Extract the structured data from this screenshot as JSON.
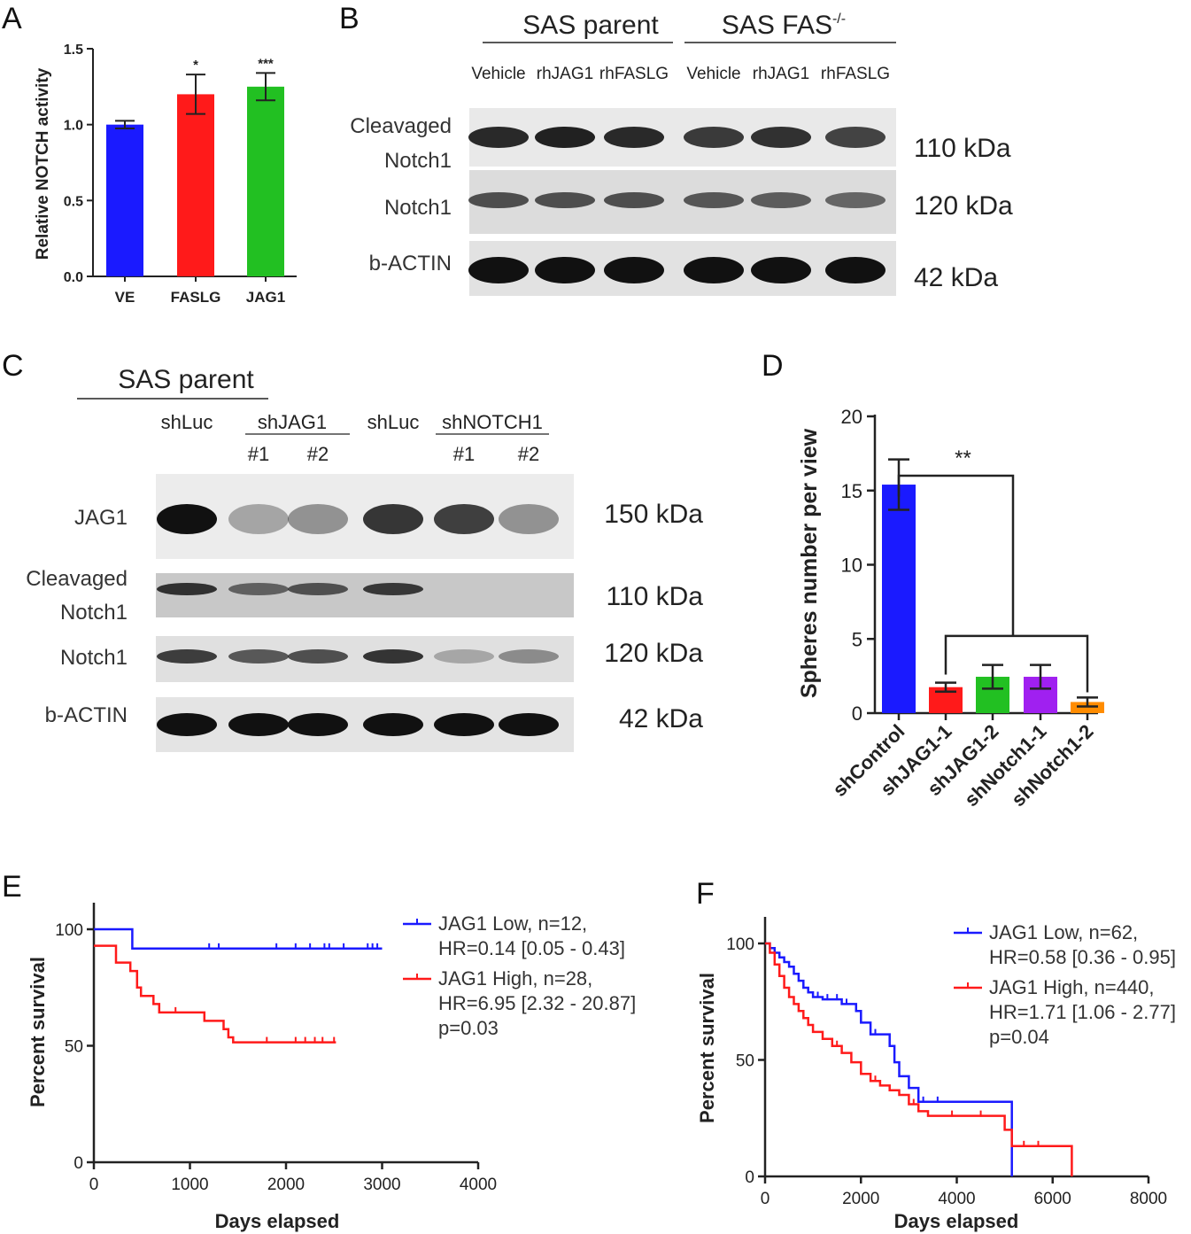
{
  "panels": {
    "A": {
      "label": "A",
      "chart_data": {
        "type": "bar",
        "title": "",
        "xlabel": "",
        "ylabel": "Relative NOTCH activity",
        "ylim": [
          0,
          1.5
        ],
        "yticks": [
          "0.0",
          "0.5",
          "1.0",
          "1.5"
        ],
        "categories": [
          "VE",
          "FASLG",
          "JAG1"
        ],
        "values": [
          1.0,
          1.2,
          1.25
        ],
        "errors": [
          0.025,
          0.13,
          0.09
        ],
        "colors": [
          "#1a1aff",
          "#ff1a1a",
          "#22c022"
        ],
        "significance": [
          "",
          "*",
          "***"
        ]
      }
    },
    "B": {
      "label": "B",
      "group_headers": [
        "SAS parent",
        "SAS FAS",
        "-/-"
      ],
      "lanes": [
        "Vehicle",
        "rhJAG1",
        "rhFASLG",
        "Vehicle",
        "rhJAG1",
        "rhFASLG"
      ],
      "rows": [
        {
          "label_lines": [
            "Cleavaged",
            "Notch1"
          ],
          "size": "110 kDa",
          "intensity": [
            0.85,
            0.9,
            0.85,
            0.75,
            0.8,
            0.7
          ]
        },
        {
          "label_lines": [
            "Notch1"
          ],
          "size": "120 kDa",
          "intensity": [
            0.6,
            0.6,
            0.6,
            0.55,
            0.5,
            0.45
          ]
        },
        {
          "label_lines": [
            "b-ACTIN"
          ],
          "size": "42 kDa",
          "intensity": [
            1,
            1,
            1,
            1,
            1,
            1
          ]
        }
      ]
    },
    "C": {
      "label": "C",
      "group_header": "SAS parent",
      "lanes_top": [
        "shLuc",
        "shJAG1",
        "shLuc",
        "shNOTCH1"
      ],
      "lanes_sub": [
        "#1",
        "#2",
        "#1",
        "#2"
      ],
      "rows": [
        {
          "label_lines": [
            "JAG1"
          ],
          "size": "150 kDa",
          "intensity": [
            1.0,
            0.2,
            0.3,
            0.8,
            0.75,
            0.3
          ]
        },
        {
          "label_lines": [
            "Cleavaged",
            "Notch1"
          ],
          "size": "110 kDa",
          "intensity": [
            0.8,
            0.5,
            0.6,
            0.75,
            0,
            0
          ]
        },
        {
          "label_lines": [
            "Notch1"
          ],
          "size": "120 kDa",
          "intensity": [
            0.75,
            0.6,
            0.65,
            0.8,
            0.15,
            0.3
          ]
        },
        {
          "label_lines": [
            "b-ACTIN"
          ],
          "size": "42 kDa",
          "intensity": [
            1,
            1,
            1,
            1,
            1,
            1
          ]
        }
      ]
    },
    "D": {
      "label": "D",
      "chart_data": {
        "type": "bar",
        "title": "",
        "xlabel": "",
        "ylabel": "Spheres number per view",
        "ylim": [
          0,
          20
        ],
        "yticks": [
          "0",
          "5",
          "10",
          "15",
          "20"
        ],
        "categories": [
          "shControl",
          "shJAG1-1",
          "shJAG1-2",
          "shNotch1-1",
          "shNotch1-2"
        ],
        "values": [
          15.4,
          1.75,
          2.45,
          2.45,
          0.75
        ],
        "errors": [
          1.7,
          0.3,
          0.8,
          0.8,
          0.3
        ],
        "colors": [
          "#1a1aff",
          "#ff1a1a",
          "#22c022",
          "#a020f0",
          "#ff8c00"
        ],
        "significance": "**"
      }
    },
    "E": {
      "label": "E",
      "chart_data": {
        "type": "line",
        "title": "",
        "xlabel": "Days elapsed",
        "ylabel": "Percent survival",
        "xlim": [
          0,
          4000
        ],
        "ylim": [
          0,
          100
        ],
        "xticks": [
          "0",
          "1000",
          "2000",
          "3000",
          "4000"
        ],
        "yticks": [
          "0",
          "50",
          "100"
        ],
        "series": [
          {
            "name": "JAG1 Low",
            "color": "#1a1aff",
            "legend_lines": [
              "JAG1 Low, n=12,",
              "HR=0.14 [0.05 - 0.43]"
            ],
            "steps": [
              [
                0,
                100
              ],
              [
                400,
                100
              ],
              [
                400,
                91.7
              ],
              [
                3000,
                91.7
              ]
            ],
            "censor_x": [
              1200,
              1300,
              1900,
              2100,
              2250,
              2400,
              2450,
              2600,
              2850,
              2900,
              2950
            ]
          },
          {
            "name": "JAG1 High",
            "color": "#ff1a1a",
            "legend_lines": [
              "JAG1 High, n=28,",
              "HR=6.95 [2.32 - 20.87]",
              "p=0.03"
            ],
            "steps": [
              [
                0,
                92.9
              ],
              [
                230,
                92.9
              ],
              [
                230,
                85.7
              ],
              [
                380,
                85.7
              ],
              [
                380,
                82.1
              ],
              [
                450,
                82.1
              ],
              [
                450,
                75
              ],
              [
                490,
                75
              ],
              [
                490,
                71.4
              ],
              [
                620,
                71.4
              ],
              [
                620,
                67.9
              ],
              [
                680,
                67.9
              ],
              [
                680,
                64.3
              ],
              [
                1150,
                64.3
              ],
              [
                1150,
                60.7
              ],
              [
                1350,
                60.7
              ],
              [
                1350,
                57.1
              ],
              [
                1400,
                57.1
              ],
              [
                1400,
                53.6
              ],
              [
                1450,
                53.6
              ],
              [
                1450,
                51.5
              ],
              [
                2520,
                51.5
              ]
            ],
            "censor_x": [
              850,
              1800,
              2100,
              2200,
              2300,
              2380,
              2500
            ]
          }
        ]
      }
    },
    "F": {
      "label": "F",
      "chart_data": {
        "type": "line",
        "title": "",
        "xlabel": "Days elapsed",
        "ylabel": "Percent survival",
        "xlim": [
          0,
          8000
        ],
        "ylim": [
          0,
          100
        ],
        "xticks": [
          "0",
          "2000",
          "4000",
          "6000",
          "8000"
        ],
        "yticks": [
          "0",
          "50",
          "100"
        ],
        "series": [
          {
            "name": "JAG1 Low",
            "color": "#1a1aff",
            "legend_lines": [
              "JAG1 Low, n=62,",
              "HR=0.58 [0.36 - 0.95]"
            ],
            "steps": [
              [
                0,
                100
              ],
              [
                100,
                98
              ],
              [
                200,
                96
              ],
              [
                300,
                94
              ],
              [
                400,
                92
              ],
              [
                500,
                90
              ],
              [
                600,
                87
              ],
              [
                700,
                84
              ],
              [
                800,
                81
              ],
              [
                900,
                79
              ],
              [
                1000,
                77
              ],
              [
                1200,
                76
              ],
              [
                1600,
                74
              ],
              [
                1900,
                71
              ],
              [
                2000,
                66
              ],
              [
                2200,
                61
              ],
              [
                2600,
                56
              ],
              [
                2700,
                49
              ],
              [
                2800,
                43
              ],
              [
                3000,
                38
              ],
              [
                3200,
                32
              ],
              [
                4000,
                32
              ],
              [
                5150,
                32
              ],
              [
                5150,
                0
              ]
            ],
            "censor_x": [
              1100,
              1300,
              1500,
              1700,
              2300,
              3300,
              3600
            ]
          },
          {
            "name": "JAG1 High",
            "color": "#ff1a1a",
            "legend_lines": [
              "JAG1 High, n=440,",
              "HR=1.71 [1.06 - 2.77]",
              "p=0.04"
            ],
            "steps": [
              [
                0,
                100
              ],
              [
                100,
                96
              ],
              [
                200,
                91
              ],
              [
                300,
                86
              ],
              [
                400,
                81
              ],
              [
                500,
                77
              ],
              [
                600,
                74
              ],
              [
                700,
                71
              ],
              [
                800,
                68
              ],
              [
                900,
                65
              ],
              [
                1000,
                62
              ],
              [
                1200,
                59
              ],
              [
                1400,
                56
              ],
              [
                1600,
                53
              ],
              [
                1800,
                49
              ],
              [
                2000,
                44
              ],
              [
                2200,
                41
              ],
              [
                2400,
                39
              ],
              [
                2600,
                37
              ],
              [
                2800,
                35
              ],
              [
                3000,
                31
              ],
              [
                3200,
                28
              ],
              [
                3400,
                26
              ],
              [
                4000,
                26
              ],
              [
                4900,
                26
              ],
              [
                5000,
                20
              ],
              [
                5150,
                13
              ],
              [
                5500,
                13
              ],
              [
                6400,
                13
              ],
              [
                6400,
                0
              ]
            ],
            "censor_x": [
              1500,
              2300,
              3100,
              3900,
              4500,
              5400,
              5700
            ]
          }
        ]
      }
    }
  }
}
